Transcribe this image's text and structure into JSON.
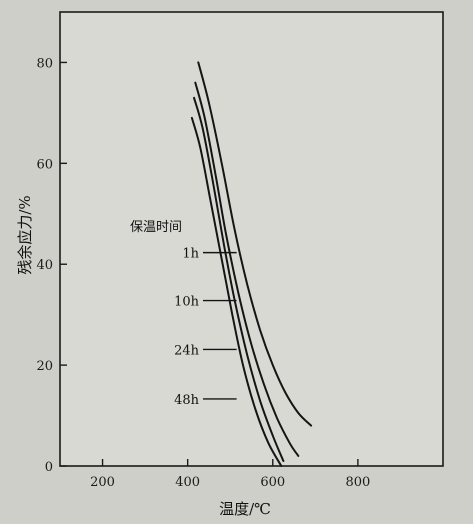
{
  "chart_data": {
    "type": "line",
    "xlabel": "温度/℃",
    "ylabel": "残余应力/%",
    "xlim": [
      100,
      1000
    ],
    "ylim": [
      0,
      90
    ],
    "x_ticks": [
      200,
      400,
      600,
      800
    ],
    "y_ticks": [
      0,
      20,
      40,
      60,
      80
    ],
    "grid": false,
    "legend_title": "保温时间",
    "series": [
      {
        "name": "1h",
        "x": [
          425,
          450,
          480,
          510,
          540,
          570,
          600,
          630,
          660,
          690
        ],
        "y": [
          80,
          72,
          60,
          47,
          36,
          27,
          20,
          14.5,
          10.5,
          8
        ]
      },
      {
        "name": "10h",
        "x": [
          418,
          440,
          465,
          490,
          520,
          550,
          580,
          610,
          640,
          660
        ],
        "y": [
          76,
          69,
          58,
          46,
          34,
          24,
          16,
          9.5,
          4.5,
          2
        ]
      },
      {
        "name": "24h",
        "x": [
          415,
          435,
          460,
          485,
          510,
          540,
          570,
          600,
          625
        ],
        "y": [
          73,
          67,
          56,
          44,
          33,
          22,
          13,
          6,
          1
        ]
      },
      {
        "name": "48h",
        "x": [
          410,
          430,
          455,
          480,
          505,
          530,
          560,
          590,
          620
        ],
        "y": [
          69,
          63,
          52,
          41,
          30,
          20,
          11,
          4.5,
          0
        ]
      }
    ],
    "legend_labels": [
      {
        "text": "1h",
        "y": 42.3
      },
      {
        "text": "10h",
        "y": 32.8
      },
      {
        "text": "24h",
        "y": 23.1
      },
      {
        "text": "48h",
        "y": 13.3
      }
    ]
  }
}
